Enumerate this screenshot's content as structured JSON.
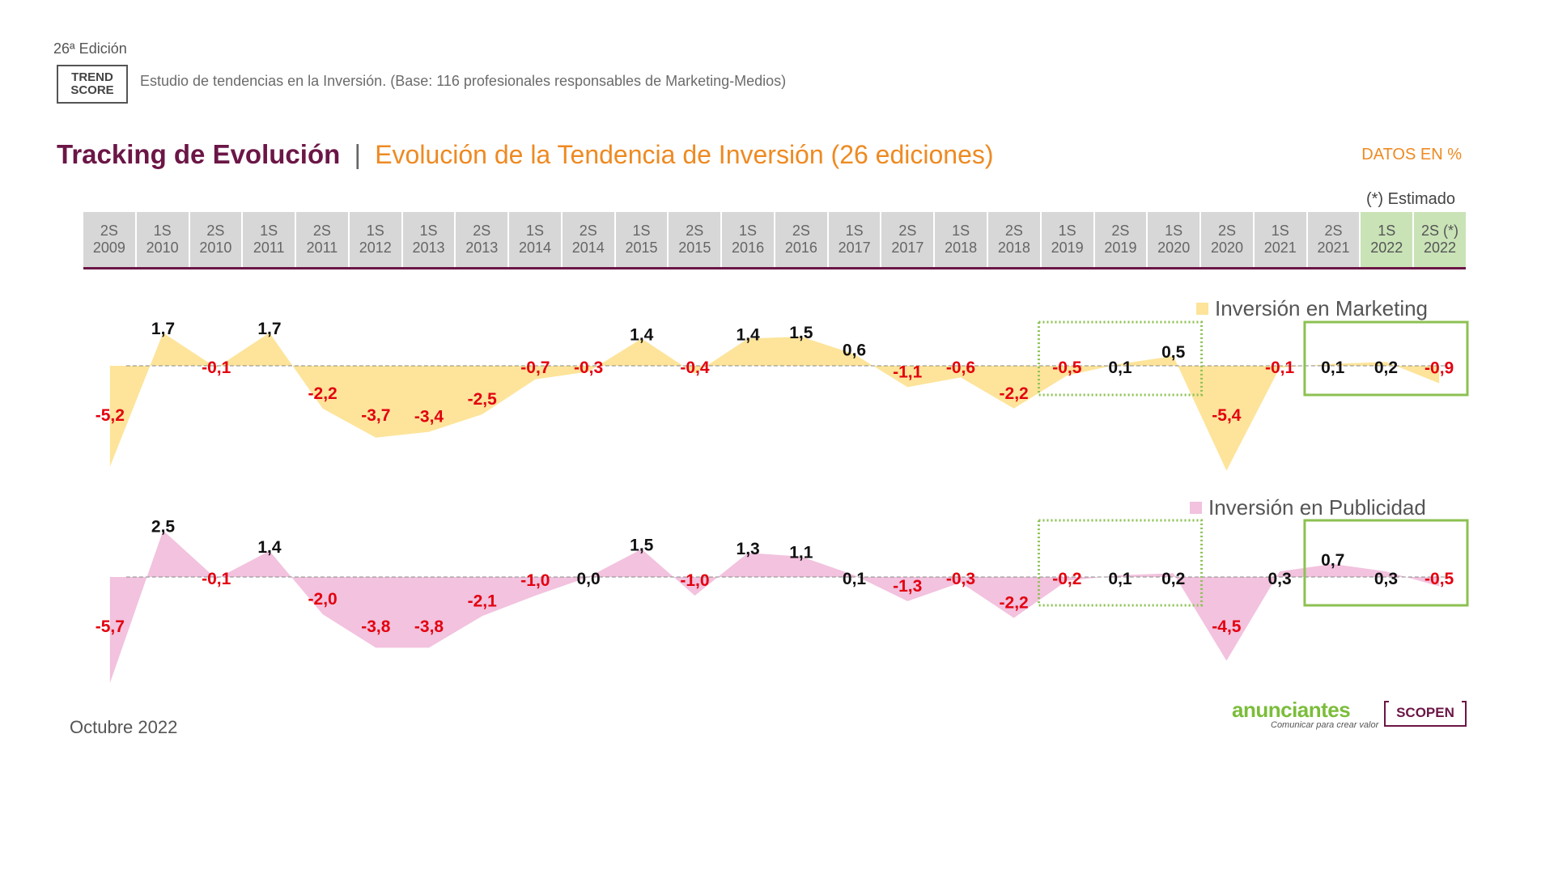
{
  "header": {
    "edition": "26ª Edición",
    "logo_line1": "TREND",
    "logo_line2": "SCORE",
    "subtitle": "Estudio de tendencias en la Inversión. (Base: 116 profesionales responsables de Marketing-Medios)"
  },
  "title": {
    "main": "Tracking de Evolución",
    "separator": "|",
    "sub": "Evolución de la Tendencia de Inversión (26 ediciones)"
  },
  "units_note": "DATOS EN %",
  "estimate_note": "(*) Estimado",
  "footer": {
    "date": "Octubre 2022",
    "brand1": "anunciantes",
    "brand1_tagline": "Comunicar para crear valor",
    "brand2": "SCOPEN"
  },
  "colors": {
    "marketing_fill": "#fde49a",
    "publicidad_fill": "#f2c2de",
    "negative_label": "#e3000f",
    "positive_label": "#111111",
    "highlight_box": "#8cc152",
    "period_header": "#d7d7d7",
    "period_header_estimated": "#c9e3b7"
  },
  "chart_data": {
    "type": "area",
    "categories": [
      [
        "2S",
        "2009"
      ],
      [
        "1S",
        "2010"
      ],
      [
        "2S",
        "2010"
      ],
      [
        "1S",
        "2011"
      ],
      [
        "2S",
        "2011"
      ],
      [
        "1S",
        "2012"
      ],
      [
        "1S",
        "2013"
      ],
      [
        "2S",
        "2013"
      ],
      [
        "1S",
        "2014"
      ],
      [
        "2S",
        "2014"
      ],
      [
        "1S",
        "2015"
      ],
      [
        "2S",
        "2015"
      ],
      [
        "1S",
        "2016"
      ],
      [
        "2S",
        "2016"
      ],
      [
        "1S",
        "2017"
      ],
      [
        "2S",
        "2017"
      ],
      [
        "1S",
        "2018"
      ],
      [
        "2S",
        "2018"
      ],
      [
        "1S",
        "2019"
      ],
      [
        "2S",
        "2019"
      ],
      [
        "1S",
        "2020"
      ],
      [
        "2S",
        "2020"
      ],
      [
        "1S",
        "2021"
      ],
      [
        "2S",
        "2021"
      ],
      [
        "1S",
        "2022"
      ],
      [
        "2S (*)",
        "2022"
      ]
    ],
    "estimated_from_index": 24,
    "series": [
      {
        "name": "Inversión en Marketing",
        "labels": [
          "-5,2",
          "1,7",
          "-0,1",
          "1,7",
          "-2,2",
          "-3,7",
          "-3,4",
          "-2,5",
          "-0,7",
          "-0,3",
          "1,4",
          "-0,4",
          "1,4",
          "1,5",
          "0,6",
          "-1,1",
          "-0,6",
          "-2,2",
          "-0,5",
          "0,1",
          "0,5",
          "-5,4",
          "-0,1",
          "0,1",
          "0,2",
          "-0,9"
        ],
        "values": [
          -5.2,
          1.7,
          -0.1,
          1.7,
          -2.2,
          -3.7,
          -3.4,
          -2.5,
          -0.7,
          -0.3,
          1.4,
          -0.4,
          1.4,
          1.5,
          0.6,
          -1.1,
          -0.6,
          -2.2,
          -0.5,
          0.1,
          0.5,
          -5.4,
          -0.1,
          0.1,
          0.2,
          -0.9
        ]
      },
      {
        "name": "Inversión en Publicidad",
        "labels": [
          "-5,7",
          "2,5",
          "-0,1",
          "1,4",
          "-2,0",
          "-3,8",
          "-3,8",
          "-2,1",
          "-1,0",
          "0,0",
          "1,5",
          "-1,0",
          "1,3",
          "1,1",
          "0,1",
          "-1,3",
          "-0,3",
          "-2,2",
          "-0,2",
          "0,1",
          "0,2",
          "-4,5",
          "0,3",
          "0,7",
          "0,3",
          "-0,5"
        ],
        "values": [
          -5.7,
          2.5,
          -0.1,
          1.4,
          -2.0,
          -3.8,
          -3.8,
          -2.1,
          -1.0,
          0.0,
          1.5,
          -1.0,
          1.3,
          1.1,
          0.1,
          -1.3,
          -0.3,
          -2.2,
          -0.2,
          0.1,
          0.2,
          -4.5,
          0.3,
          0.7,
          0.3,
          -0.5
        ]
      }
    ],
    "highlight_ranges": [
      {
        "from_index": 18,
        "to_index": 20,
        "style": "dotted"
      },
      {
        "from_index": 23,
        "to_index": 25,
        "style": "solid"
      }
    ],
    "baseline": 0,
    "grid": false
  }
}
